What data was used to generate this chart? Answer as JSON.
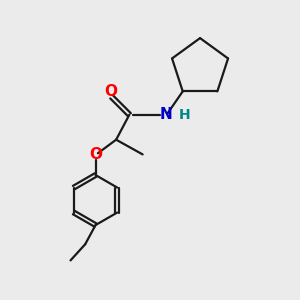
{
  "bg_color": "#ebebeb",
  "bond_color": "#1a1a1a",
  "O_color": "#ff0000",
  "N_color": "#0000cc",
  "H_color": "#008888",
  "line_width": 1.6,
  "figsize": [
    3.0,
    3.0
  ],
  "dpi": 100,
  "xlim": [
    0,
    10
  ],
  "ylim": [
    0,
    10
  ]
}
